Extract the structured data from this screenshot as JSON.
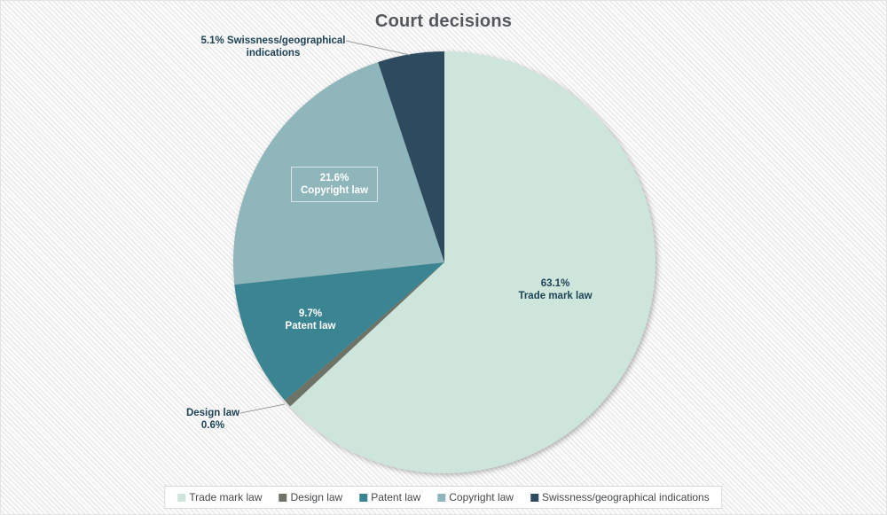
{
  "chart_data": {
    "type": "pie",
    "title": "Court decisions",
    "legend_position": "bottom",
    "slices": [
      {
        "label": "Trade mark law",
        "value": 63.1,
        "display": "63.1%",
        "color": "#cee5db"
      },
      {
        "label": "Design law",
        "value": 0.6,
        "display": "0.6%",
        "color": "#6e7368"
      },
      {
        "label": "Patent law",
        "value": 9.7,
        "display": "9.7%",
        "color": "#3a8591"
      },
      {
        "label": "Copyright law",
        "value": 21.6,
        "display": "21.6%",
        "color": "#8fb7bb"
      },
      {
        "label": "Swissness/geographical indications",
        "value": 5.1,
        "display": "5.1%",
        "color": "#2e4a5e"
      }
    ]
  },
  "annotations": {
    "swissness_line1": "5.1% Swissness/geographical",
    "swissness_line2": "indications"
  },
  "colors": {
    "title_text": "#54585c",
    "dark_label_text": "#1d4356",
    "leader_line": "#9b9b9b",
    "legend_border": "#d8d8d8",
    "background_stripe": "#ececec"
  }
}
